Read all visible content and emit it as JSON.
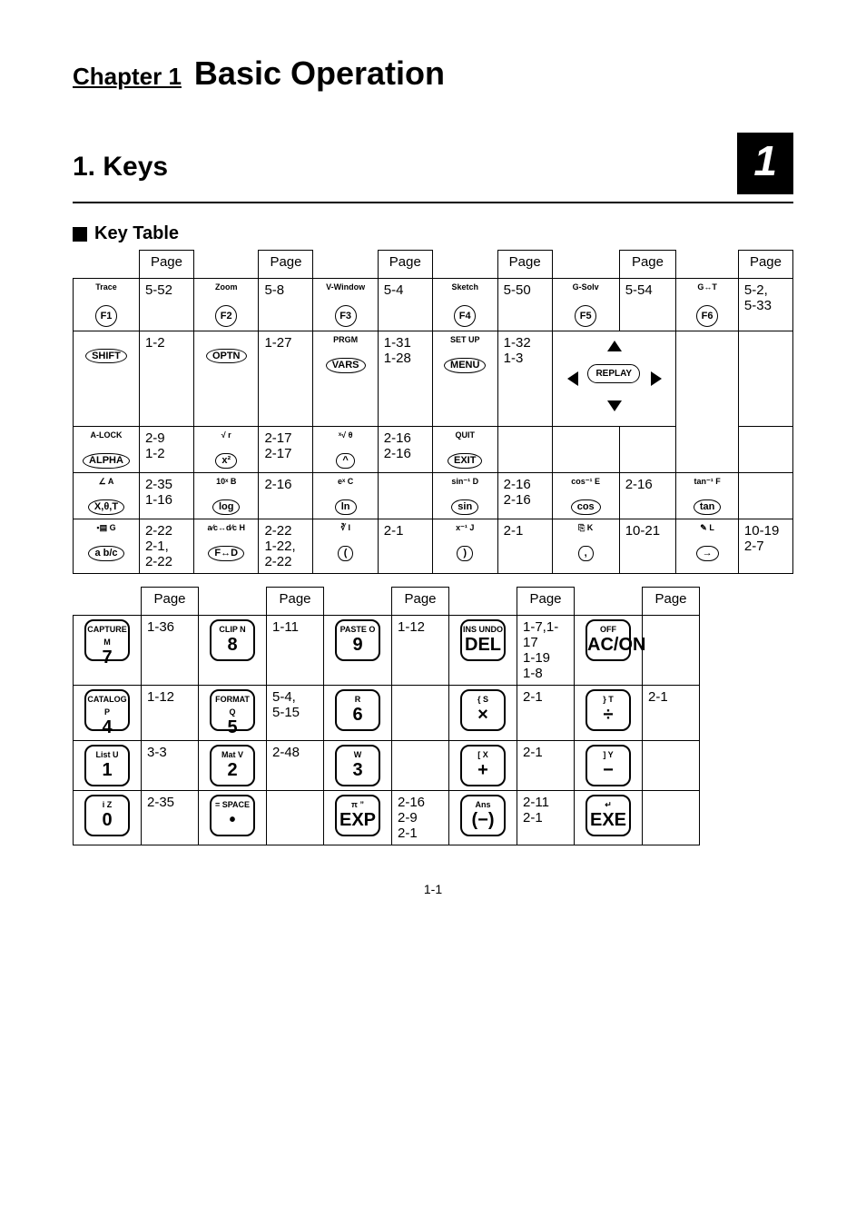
{
  "chapter_label": "Chapter 1",
  "chapter_title": "Basic Operation",
  "section": "1. Keys",
  "tab": "1",
  "subhead": "Key Table",
  "page_header": "Page",
  "footer": "1-1",
  "rows_top": [
    [
      {
        "t": "Trace",
        "k": "F1",
        "s": "round"
      },
      "5-52",
      {
        "t": "Zoom",
        "k": "F2",
        "s": "round"
      },
      "5-8",
      {
        "t": "V-Window",
        "k": "F3",
        "s": "round"
      },
      "5-4",
      {
        "t": "Sketch",
        "k": "F4",
        "s": "round"
      },
      "5-50",
      {
        "t": "G-Solv",
        "k": "F5",
        "s": "round"
      },
      "5-54",
      {
        "t": "G↔T",
        "k": "F6",
        "s": "round"
      },
      "5-2,\n5-33"
    ],
    [
      {
        "t": "",
        "k": "SHIFT",
        "s": "oval"
      },
      "1-2",
      {
        "t": "",
        "k": "OPTN",
        "s": "oval"
      },
      "1-27",
      {
        "t": "PRGM",
        "k": "VARS",
        "s": "oval"
      },
      "1-31\n1-28",
      {
        "t": "SET UP",
        "k": "MENU",
        "s": "oval"
      },
      "1-32\n1-3",
      {
        "replay": true
      },
      "",
      {
        "t": "",
        "k": "",
        "s": "none"
      },
      ""
    ],
    [
      {
        "t": "A-LOCK",
        "k": "ALPHA",
        "s": "oval"
      },
      "2-9\n1-2",
      {
        "t": "√   r",
        "k": "x²",
        "s": "oval"
      },
      "2-17\n2-17",
      {
        "t": "ˣ√   θ",
        "k": "^",
        "s": "oval"
      },
      "2-16\n2-16",
      {
        "t": "QUIT",
        "k": "EXIT",
        "s": "oval"
      },
      "",
      {
        "t": "",
        "k": "",
        "s": "none"
      },
      "",
      {
        "t": "",
        "k": "",
        "s": "none"
      },
      ""
    ],
    [
      {
        "t": "∠   A",
        "k": "X,θ,T",
        "s": "oval"
      },
      "2-35\n1-16",
      {
        "t": "10ˣ  B",
        "k": "log",
        "s": "oval"
      },
      "2-16",
      {
        "t": "eˣ  C",
        "k": "ln",
        "s": "oval"
      },
      "",
      {
        "t": "sin⁻¹ D",
        "k": "sin",
        "s": "oval"
      },
      "2-16\n2-16",
      {
        "t": "cos⁻¹ E",
        "k": "cos",
        "s": "oval"
      },
      "2-16",
      {
        "t": "tan⁻¹ F",
        "k": "tan",
        "s": "oval"
      },
      ""
    ],
    [
      {
        "t": "▪▤  G",
        "k": "a b/c",
        "s": "oval"
      },
      "2-22\n2-1,\n2-22",
      {
        "t": "a⁄c↔d⁄c H",
        "k": "F↔D",
        "s": "oval"
      },
      "2-22\n1-22,\n2-22",
      {
        "t": "∛   I",
        "k": "(",
        "s": "oval"
      },
      "2-1",
      {
        "t": "x⁻¹  J",
        "k": ")",
        "s": "oval"
      },
      "2-1",
      {
        "t": "⎘  K",
        "k": ",",
        "s": "oval"
      },
      "10-21",
      {
        "t": "✎  L",
        "k": "→",
        "s": "oval"
      },
      "10-19\n2-7"
    ]
  ],
  "rows_bot": [
    [
      {
        "t": "CAPTURE M",
        "k": "7"
      },
      "1-36",
      {
        "t": "CLIP   N",
        "k": "8"
      },
      "1-11",
      {
        "t": "PASTE  O",
        "k": "9"
      },
      "1-12",
      {
        "t": "INS UNDO",
        "k": "DEL"
      },
      "1-7,1-17\n1-19\n1-8",
      {
        "t": "OFF",
        "k": "AC/ON"
      },
      ""
    ],
    [
      {
        "t": "CATALOG P",
        "k": "4"
      },
      "1-12",
      {
        "t": "FORMAT Q",
        "k": "5"
      },
      "5-4,\n5-15",
      {
        "t": "R",
        "k": "6"
      },
      "",
      {
        "t": "{   S",
        "k": "×"
      },
      "2-1",
      {
        "t": "}   T",
        "k": "÷"
      },
      "2-1"
    ],
    [
      {
        "t": "List  U",
        "k": "1"
      },
      "3-3",
      {
        "t": "Mat  V",
        "k": "2"
      },
      "2-48",
      {
        "t": "W",
        "k": "3"
      },
      "",
      {
        "t": "[   X",
        "k": "+"
      },
      "2-1",
      {
        "t": "]   Y",
        "k": "−"
      },
      ""
    ],
    [
      {
        "t": "i     Z",
        "k": "0"
      },
      "2-35",
      {
        "t": "=  SPACE",
        "k": "•"
      },
      "",
      {
        "t": "π   ”",
        "k": "EXP"
      },
      "2-16\n2-9\n2-1",
      {
        "t": "Ans",
        "k": "(−)"
      },
      "2-11\n2-1",
      {
        "t": "↵",
        "k": "EXE"
      },
      ""
    ]
  ]
}
